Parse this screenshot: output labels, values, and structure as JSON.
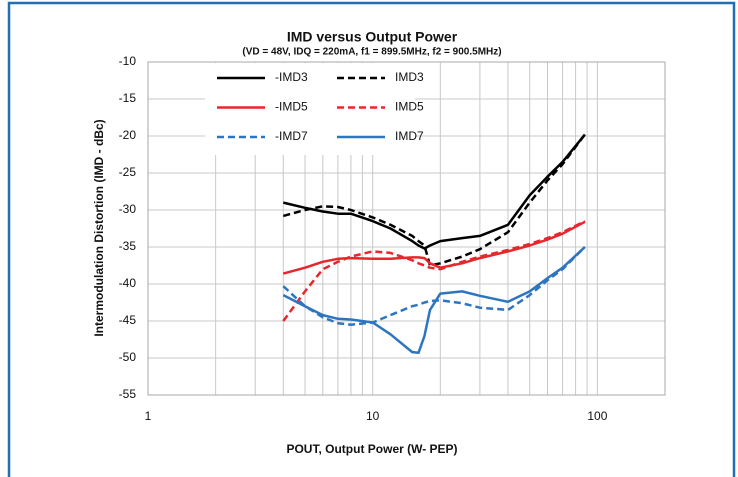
{
  "chart_data": {
    "type": "line",
    "title": "IMD versus Output Power",
    "subtitle": "(VD = 48V, IDQ = 220mA, f1 = 899.5MHz, f2 = 900.5MHz)",
    "x_label": "POUT, Output Power (W- PEP)",
    "y_label": "Intermodulation Distortion (IMD - dBc)",
    "x_scale": "log",
    "xlim": [
      1,
      200
    ],
    "xticks": [
      1,
      10,
      100
    ],
    "x_minor_grid": [
      2,
      3,
      4,
      5,
      6,
      7,
      8,
      9,
      20,
      30,
      40,
      50,
      60,
      70,
      80,
      90
    ],
    "ylim": [
      -55,
      -10
    ],
    "yticks": [
      -10,
      -15,
      -20,
      -25,
      -30,
      -35,
      -40,
      -45,
      -50,
      -55
    ],
    "grid": true,
    "legend": "upper left",
    "x": [
      4,
      5,
      6,
      7,
      8,
      10,
      12,
      15,
      16,
      17,
      18,
      20,
      25,
      30,
      40,
      50,
      60,
      70,
      88
    ],
    "series": [
      {
        "name": "-IMD3",
        "color": "#000000",
        "dash": false,
        "values": [
          -29,
          -29.7,
          -30.2,
          -30.5,
          -30.5,
          -31.5,
          -32.5,
          -34.2,
          -34.8,
          -35.2,
          -34.8,
          -34.2,
          -33.8,
          -33.5,
          -32,
          -28,
          -25.5,
          -23.5,
          -19.8
        ]
      },
      {
        "name": "IMD3",
        "color": "#000000",
        "dash": true,
        "values": [
          -30.8,
          -30,
          -29.5,
          -29.6,
          -30,
          -31,
          -32,
          -33.5,
          -34.2,
          -34.8,
          -37.5,
          -37.2,
          -36.3,
          -35.3,
          -33,
          -29,
          -26,
          -23.8,
          -19.8
        ]
      },
      {
        "name": "-IMD5",
        "color": "#e8262b",
        "dash": false,
        "values": [
          -38.6,
          -37.8,
          -37,
          -36.6,
          -36.5,
          -36.6,
          -36.6,
          -36.4,
          -36.4,
          -36.5,
          -37.2,
          -37.8,
          -37.2,
          -36.5,
          -35.6,
          -34.8,
          -34,
          -33.2,
          -31.6
        ]
      },
      {
        "name": "IMD5",
        "color": "#e8262b",
        "dash": true,
        "values": [
          -45,
          -41,
          -38,
          -37,
          -36.3,
          -35.6,
          -35.8,
          -36.8,
          -37.2,
          -37.5,
          -37.8,
          -38,
          -37,
          -36.3,
          -35.4,
          -34.6,
          -33.8,
          -33,
          -31.5
        ]
      },
      {
        "name": "-IMD7",
        "color": "#2e75c0",
        "dash": true,
        "values": [
          -40.3,
          -43,
          -44.5,
          -45.3,
          -45.5,
          -45.2,
          -44.2,
          -43,
          -42.8,
          -42.5,
          -42.3,
          -42.2,
          -42.6,
          -43.2,
          -43.5,
          -41.5,
          -39.5,
          -38,
          -35
        ]
      },
      {
        "name": "IMD7",
        "color": "#2e75c0",
        "dash": false,
        "values": [
          -41.5,
          -43,
          -44.2,
          -44.7,
          -44.8,
          -45.2,
          -46.8,
          -49.2,
          -49.3,
          -47,
          -43.5,
          -41.3,
          -41,
          -41.6,
          -42.4,
          -41,
          -39.2,
          -37.8,
          -35
        ]
      }
    ]
  }
}
